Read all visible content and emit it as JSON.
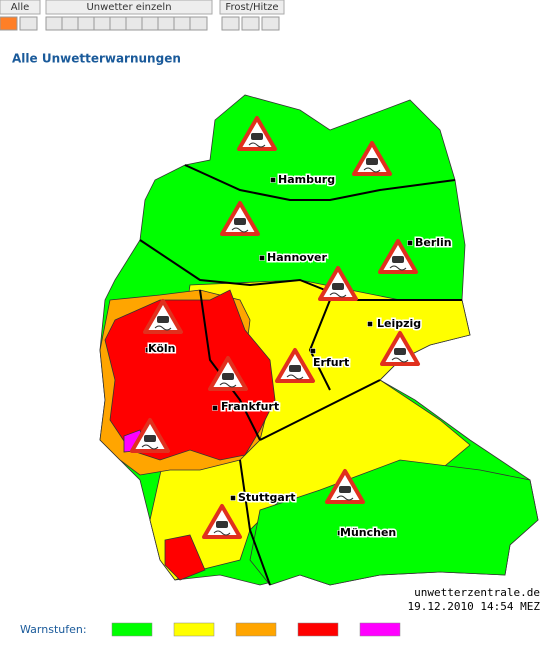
{
  "tabs": [
    "Alle",
    "Unwetter einzeln",
    "Frost/Hitze"
  ],
  "title": "Alle Unwetterwarnungen",
  "cities": [
    "Hamburg",
    "Berlin",
    "Hannover",
    "Leipzig",
    "Köln",
    "Erfurt",
    "Frankfurt",
    "Stuttgart",
    "München"
  ],
  "source": "unwetterzentrale.de",
  "timestamp": "19.12.2010 14:54 MEZ",
  "legend": {
    "label": "Warnstufen:",
    "colors": [
      "#00ff00",
      "#ffff00",
      "#ffa500",
      "#ff0000",
      "#ff00ff"
    ]
  }
}
